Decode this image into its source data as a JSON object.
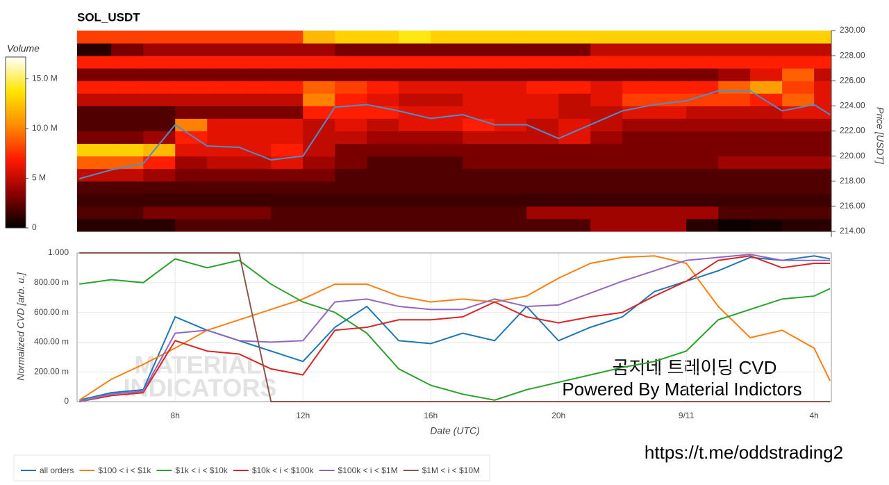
{
  "chart_data": [
    {
      "type": "heatmap",
      "title": "SOL_USDT",
      "colorbar_label": "Volume",
      "y_label": "Price [USDT]",
      "zlim": [
        0,
        17.2
      ],
      "zticks": [
        0,
        {
          "value": 5,
          "label": "5 M"
        },
        {
          "value": 10,
          "label": "10.0 M"
        },
        {
          "value": 15,
          "label": "15.0 M"
        }
      ],
      "colorscale": [
        "#000000",
        "#8c0000",
        "#ff1a00",
        "#ff8c00",
        "#ffe600",
        "#ffffff"
      ],
      "xlim": [
        4.93,
        28.54
      ],
      "ylim": [
        214,
        230
      ],
      "yticks": [
        {
          "value": 214,
          "label": "214.00"
        },
        {
          "value": 216,
          "label": "216.00"
        },
        {
          "value": 218,
          "label": "218.00"
        },
        {
          "value": 220,
          "label": "220.00"
        },
        {
          "value": 222,
          "label": "222.00"
        },
        {
          "value": 224,
          "label": "224.00"
        },
        {
          "value": 226,
          "label": "226.00"
        },
        {
          "value": 228,
          "label": "228.00"
        },
        {
          "value": 230,
          "label": "230.00"
        }
      ],
      "x_bins": [
        4.93,
        6,
        7,
        8,
        9,
        10,
        11,
        12,
        13,
        14,
        15,
        16,
        17,
        18,
        19,
        20,
        21,
        22,
        23,
        24,
        25,
        26,
        27,
        28,
        28.54
      ],
      "y_bins": [
        214,
        215,
        216,
        217,
        218,
        219,
        220,
        221,
        222,
        223,
        224,
        225,
        226,
        227,
        228,
        229,
        230
      ],
      "z": [
        [
          1,
          1,
          1,
          2,
          2,
          2,
          2,
          2,
          2,
          2,
          2,
          2,
          2,
          2,
          2,
          2,
          4,
          4,
          4,
          1,
          0.3,
          0.5,
          1,
          1
        ],
        [
          2,
          2,
          3,
          3,
          3,
          3,
          2,
          2,
          2,
          2,
          2,
          2,
          2,
          2,
          4,
          4,
          4,
          4,
          4,
          4,
          2,
          2,
          2,
          2
        ],
        [
          1.5,
          1.5,
          1.5,
          1.5,
          1.5,
          1.5,
          1.5,
          1.5,
          1.5,
          1.5,
          1.5,
          1.5,
          1.5,
          1.5,
          1.5,
          1.5,
          1.5,
          1.5,
          1.5,
          1.5,
          1.5,
          1.5,
          1.5,
          1.5
        ],
        [
          2,
          2,
          2,
          2,
          2,
          2,
          2,
          2,
          2,
          2,
          2,
          2,
          2,
          2,
          2,
          2,
          2,
          2,
          2,
          2,
          2,
          2,
          2,
          2
        ],
        [
          5,
          5,
          4,
          3,
          3,
          3,
          3,
          3,
          2,
          2,
          2,
          2,
          2,
          2,
          2,
          2,
          2,
          2,
          2,
          2,
          2,
          2,
          2,
          2
        ],
        [
          9,
          9,
          7,
          4,
          5,
          5,
          6,
          4,
          3,
          2,
          2,
          2,
          3,
          3,
          3,
          3,
          3,
          3,
          3,
          3,
          4,
          4,
          4,
          4
        ],
        [
          13,
          13,
          12,
          6,
          6,
          6,
          7,
          5,
          3,
          3,
          3,
          3,
          3,
          3,
          3,
          3,
          3,
          3,
          3,
          3,
          3,
          3,
          3,
          3
        ],
        [
          3,
          3,
          4,
          7,
          6,
          6,
          6,
          5,
          5,
          4,
          4,
          4,
          5,
          5,
          5,
          6,
          4,
          3,
          3,
          3,
          3,
          3,
          3,
          3
        ],
        [
          2,
          2,
          2,
          10,
          6,
          6,
          6,
          5,
          6,
          5,
          6,
          6,
          7,
          6,
          5,
          6,
          5,
          4,
          4,
          4,
          4,
          4,
          4,
          4
        ],
        [
          2,
          2,
          2,
          3,
          3,
          3,
          3,
          7,
          7,
          7,
          6,
          6,
          6,
          6,
          6,
          5,
          5,
          6,
          6,
          5,
          5,
          5,
          6,
          6
        ],
        [
          5,
          5,
          5,
          5,
          5,
          5,
          5,
          10,
          7,
          6,
          5,
          5,
          6,
          6,
          6,
          5,
          6,
          8,
          8,
          8,
          8,
          7,
          9,
          6
        ],
        [
          7,
          7,
          7,
          7,
          7,
          7,
          7,
          9,
          8,
          7,
          6,
          6,
          6,
          6,
          7,
          7,
          6,
          7,
          7,
          7,
          9,
          11,
          8,
          6
        ],
        [
          3,
          3,
          3,
          3,
          3,
          3,
          3,
          3,
          3,
          3,
          3,
          3,
          3,
          3,
          3,
          3,
          3,
          3,
          3,
          3,
          4,
          6,
          9,
          5
        ],
        [
          7,
          7,
          7,
          7,
          7,
          7,
          7,
          7,
          7,
          7,
          7,
          7,
          7,
          7,
          7,
          7,
          7,
          7,
          7,
          7,
          7,
          7,
          7,
          7
        ],
        [
          1,
          3,
          4,
          4,
          4,
          4,
          4,
          4,
          3,
          3,
          3,
          3,
          3,
          3,
          3,
          3,
          5,
          5,
          5,
          5,
          5,
          5,
          5,
          5
        ],
        [
          8,
          8,
          8,
          8,
          8,
          8,
          8,
          12,
          13,
          13,
          14,
          13,
          13,
          13,
          13,
          13,
          13,
          13,
          13,
          13,
          13,
          13,
          13,
          13
        ]
      ],
      "x": [
        5,
        6,
        7,
        8,
        9,
        10,
        11,
        12,
        13,
        14,
        15,
        16,
        17,
        18,
        19,
        20,
        21,
        22,
        23,
        24,
        25,
        26,
        27,
        28,
        28.5
      ],
      "series": [
        {
          "color": "#4d8fc9",
          "values": [
            218.2,
            218.9,
            219.4,
            222.5,
            220.8,
            220.7,
            219.7,
            220.0,
            223.9,
            224.1,
            223.6,
            223.0,
            223.3,
            222.5,
            222.5,
            221.4,
            222.5,
            223.6,
            224.1,
            224.4,
            225.2,
            225.2,
            223.6,
            224.1,
            223.3
          ]
        }
      ]
    },
    {
      "type": "line",
      "x_label": "Date (UTC)",
      "y_label": "Normalized CVD [arb. u.]",
      "grid": true,
      "xlim": [
        4.93,
        28.54
      ],
      "ylim": [
        0,
        1
      ],
      "xticks": [
        {
          "value": 8,
          "label": "8h"
        },
        {
          "value": 12,
          "label": "12h"
        },
        {
          "value": 16,
          "label": "16h"
        },
        {
          "value": 20,
          "label": "20h"
        },
        {
          "value": 24,
          "label": "9/11"
        },
        {
          "value": 28,
          "label": "4h"
        }
      ],
      "yticks": [
        0,
        {
          "value": 0.2,
          "label": "200.00 m"
        },
        {
          "value": 0.4,
          "label": "400.00 m"
        },
        {
          "value": 0.6,
          "label": "600.00 m"
        },
        {
          "value": 0.8,
          "label": "800.00 m"
        },
        {
          "value": 1,
          "label": "1.000"
        }
      ],
      "x": [
        5,
        6,
        7,
        8,
        9,
        10,
        11,
        12,
        13,
        14,
        15,
        16,
        17,
        18,
        19,
        20,
        21,
        22,
        23,
        24,
        25,
        26,
        27,
        28,
        28.5
      ],
      "series": [
        {
          "name": "all orders",
          "color": "#1f77b4",
          "values": [
            0.01,
            0.06,
            0.08,
            0.57,
            0.48,
            0.41,
            0.34,
            0.27,
            0.5,
            0.64,
            0.41,
            0.39,
            0.46,
            0.41,
            0.64,
            0.41,
            0.5,
            0.57,
            0.74,
            0.81,
            0.88,
            0.97,
            0.95,
            0.98,
            0.96
          ]
        },
        {
          "name": "$100 < i < $1k",
          "color": "#ff7f0e",
          "values": [
            0.01,
            0.15,
            0.25,
            0.36,
            0.48,
            0.55,
            0.62,
            0.69,
            0.79,
            0.79,
            0.71,
            0.67,
            0.69,
            0.67,
            0.71,
            0.83,
            0.93,
            0.97,
            0.98,
            0.93,
            0.64,
            0.43,
            0.48,
            0.36,
            0.14
          ]
        },
        {
          "name": "$1k < i < $10k",
          "color": "#2ca02c",
          "values": [
            0.79,
            0.82,
            0.8,
            0.96,
            0.9,
            0.95,
            0.79,
            0.67,
            0.6,
            0.46,
            0.22,
            0.11,
            0.05,
            0.01,
            0.08,
            0.13,
            0.18,
            0.23,
            0.27,
            0.34,
            0.55,
            0.62,
            0.69,
            0.71,
            0.76
          ]
        },
        {
          "name": "$10k < i < $100k",
          "color": "#d62728",
          "values": [
            0.0,
            0.04,
            0.06,
            0.41,
            0.34,
            0.32,
            0.22,
            0.18,
            0.48,
            0.5,
            0.55,
            0.55,
            0.57,
            0.67,
            0.57,
            0.53,
            0.57,
            0.6,
            0.71,
            0.81,
            0.95,
            0.98,
            0.9,
            0.93,
            0.93
          ]
        },
        {
          "name": "$100k < i < $1M",
          "color": "#9467bd",
          "values": [
            0.0,
            0.05,
            0.07,
            0.46,
            0.48,
            0.41,
            0.4,
            0.41,
            0.67,
            0.69,
            0.64,
            0.62,
            0.62,
            0.69,
            0.64,
            0.65,
            0.73,
            0.81,
            0.88,
            0.95,
            0.97,
            0.99,
            0.95,
            0.95,
            0.95
          ]
        },
        {
          "name": "$1M < i < $10M",
          "color": "#8c564b",
          "values": [
            1,
            1,
            1,
            1,
            1,
            1,
            0,
            0,
            0,
            0,
            0,
            0,
            0,
            0,
            0,
            0,
            0,
            0,
            0,
            0,
            0,
            0,
            0,
            0,
            0
          ]
        }
      ],
      "watermark": [
        "MATERIAL",
        "INDICATORS"
      ],
      "annotations": [
        "곰지네 트레이딩 CVD",
        "Powered By Material Indictors",
        "https://t.me/oddstrading2"
      ]
    }
  ]
}
